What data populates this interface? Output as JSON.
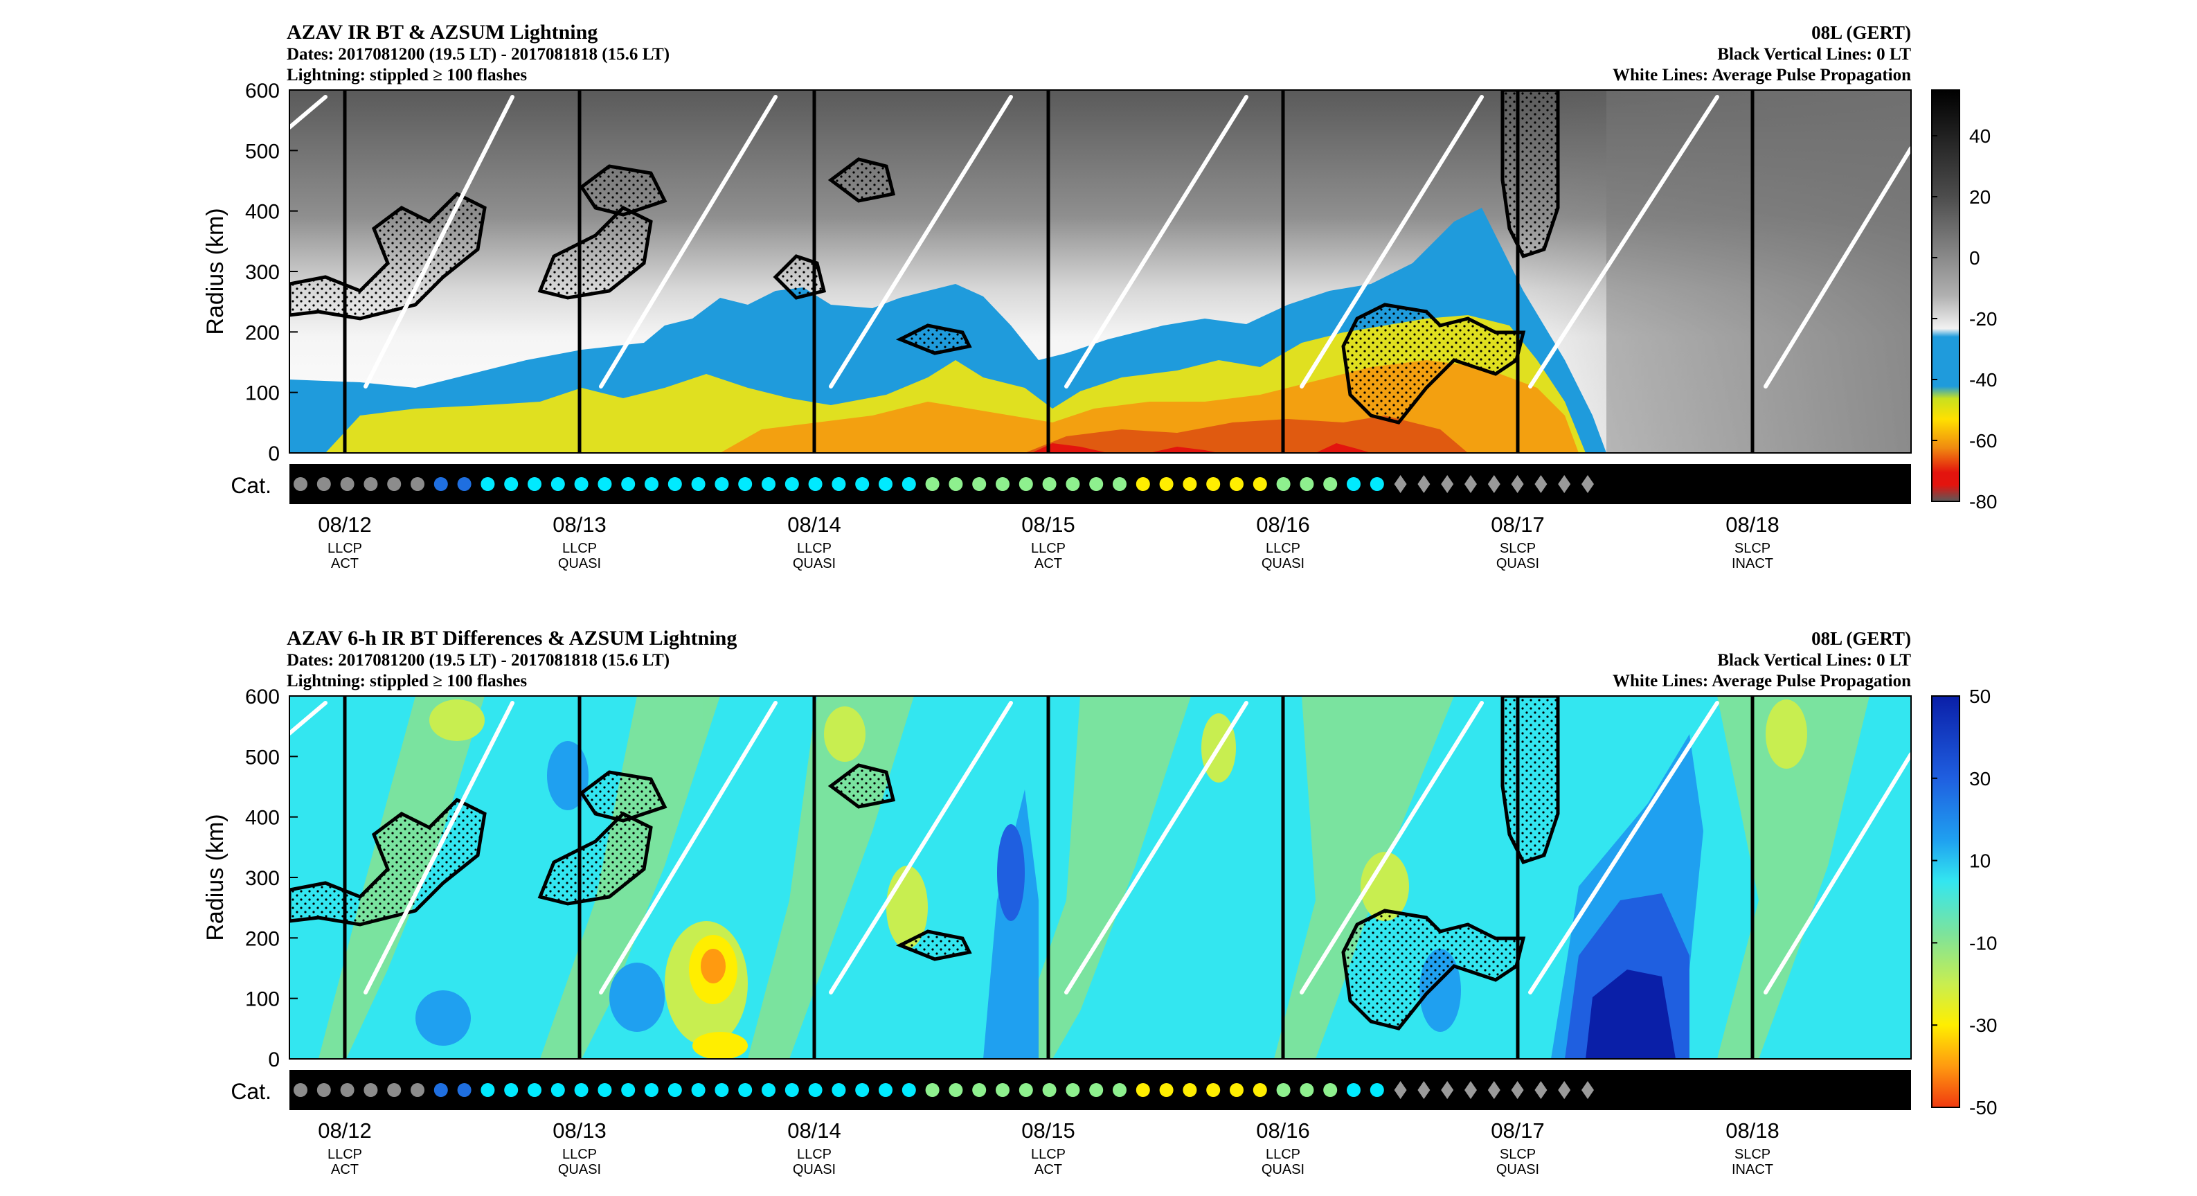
{
  "chart_data": [
    {
      "type": "heatmap",
      "title": "AZAV IR BT & AZSUM Lightning",
      "subtitle_dates": "Dates: 2017081200 (19.5 LT) - 2017081818 (15.6 LT)",
      "subtitle_lightning": "Lightning: stippled ≥ 100 flashes",
      "storm": "08L (GERT)",
      "note_black": "Black Vertical Lines: 0 LT",
      "note_white": "White Lines: Average Pulse Propagation",
      "ylabel": "Radius (km)",
      "ylim": [
        0,
        600
      ],
      "yticks": [
        "0",
        "100",
        "200",
        "300",
        "400",
        "500",
        "600"
      ],
      "cat_label": "Cat.",
      "colorbar": {
        "range": [
          -80,
          55
        ],
        "ticks": [
          "40",
          "20",
          "0",
          "-20",
          "-40",
          "-60",
          "-80"
        ],
        "tick_values": [
          40,
          20,
          0,
          -20,
          -40,
          -60,
          -80
        ]
      }
    },
    {
      "type": "heatmap",
      "title": "AZAV 6-h IR BT Differences & AZSUM Lightning",
      "subtitle_dates": "Dates: 2017081200 (19.5 LT) - 2017081818 (15.6 LT)",
      "subtitle_lightning": "Lightning: stippled ≥ 100 flashes",
      "storm": "08L (GERT)",
      "note_black": "Black Vertical Lines: 0 LT",
      "note_white": "White Lines: Average Pulse Propagation",
      "ylabel": "Radius (km)",
      "ylim": [
        0,
        600
      ],
      "yticks": [
        "0",
        "100",
        "200",
        "300",
        "400",
        "500",
        "600"
      ],
      "cat_label": "Cat.",
      "colorbar": {
        "range": [
          -50,
          50
        ],
        "ticks": [
          "50",
          "30",
          "10",
          "-10",
          "-30",
          "-50"
        ],
        "tick_values": [
          50,
          30,
          10,
          -10,
          -30,
          -50
        ]
      }
    }
  ],
  "days": [
    {
      "date": "08/12",
      "type": "LLCP",
      "state": "ACT"
    },
    {
      "date": "08/13",
      "type": "LLCP",
      "state": "QUASI"
    },
    {
      "date": "08/14",
      "type": "LLCP",
      "state": "QUASI"
    },
    {
      "date": "08/15",
      "type": "LLCP",
      "state": "ACT"
    },
    {
      "date": "08/16",
      "type": "LLCP",
      "state": "QUASI"
    },
    {
      "date": "08/17",
      "type": "SLCP",
      "state": "QUASI"
    },
    {
      "date": "08/18",
      "type": "SLCP",
      "state": "INACT"
    }
  ],
  "categories": [
    "LO",
    "LO",
    "LO",
    "LO",
    "LO",
    "LO",
    "TD",
    "TD",
    "TS",
    "TS",
    "TS",
    "TS",
    "TS",
    "TS",
    "TS",
    "TS",
    "TS",
    "TS",
    "TS",
    "TS",
    "TS",
    "TS",
    "TS",
    "TS",
    "TS",
    "TS",
    "TS",
    "H1",
    "H1",
    "H1",
    "H1",
    "H1",
    "H1",
    "H1",
    "H1",
    "H1",
    "H2",
    "H2",
    "H2",
    "H2",
    "H2",
    "H2",
    "H1",
    "H1",
    "H1",
    "TS",
    "TS",
    "EX",
    "EX",
    "EX",
    "EX",
    "EX",
    "EX",
    "EX",
    "EX",
    "EX"
  ],
  "category_colors": {
    "LO": "#8c8c8c",
    "TD": "#1f6fe0",
    "TS": "#00eaff",
    "H1": "#8ef08e",
    "H2": "#ffee00",
    "EX": "#9a9a9a"
  },
  "colors": {
    "ir_warm": "#3a3a3a",
    "ir_cold_blue": "#1f9bdc",
    "ir_deep": "#e3140e",
    "diff_base": "#33e6f0",
    "diff_green": "#7ee39a",
    "diff_blue": "#1432c8"
  }
}
